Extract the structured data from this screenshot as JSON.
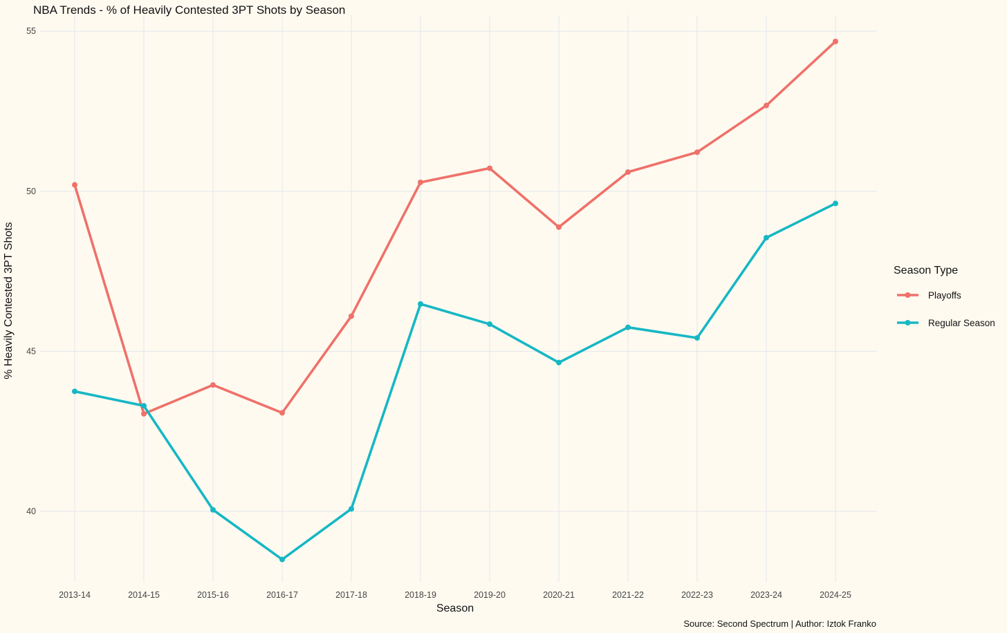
{
  "chart_data": {
    "type": "line",
    "title": "NBA Trends - % of Heavily Contested 3PT Shots by Season",
    "xlabel": "Season",
    "ylabel": "% Heavily Contested 3PT Shots",
    "caption": "Source: Second Spectrum | Author: Iztok Franko",
    "categories": [
      "2013-14",
      "2014-15",
      "2015-16",
      "2016-17",
      "2017-18",
      "2018-19",
      "2019-20",
      "2020-21",
      "2021-22",
      "2022-23",
      "2023-24",
      "2024-25"
    ],
    "yticks": [
      40,
      45,
      50,
      55
    ],
    "ylim": [
      37.8,
      55.5
    ],
    "grid": true,
    "legend": {
      "title": "Season Type",
      "placement": "right"
    },
    "series": [
      {
        "name": "Playoffs",
        "color": "#ef716a",
        "values": [
          50.2,
          43.05,
          43.95,
          43.08,
          46.1,
          50.28,
          50.72,
          48.88,
          50.6,
          51.22,
          52.68,
          54.68
        ]
      },
      {
        "name": "Regular Season",
        "color": "#16b7c4",
        "values": [
          43.75,
          43.3,
          40.05,
          38.5,
          40.08,
          46.48,
          45.85,
          44.65,
          45.75,
          45.42,
          48.55,
          49.62
        ]
      }
    ]
  }
}
